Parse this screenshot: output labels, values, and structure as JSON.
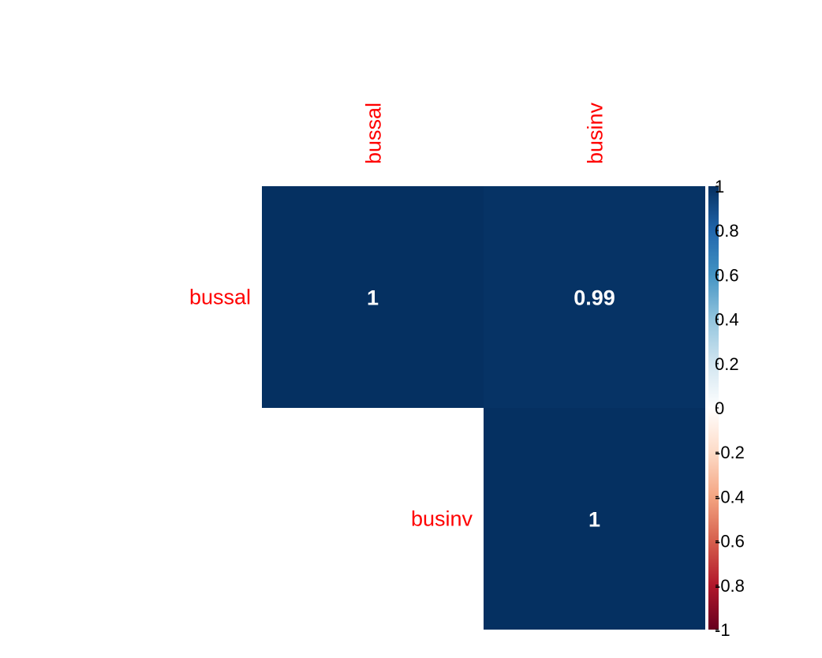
{
  "chart_data": {
    "type": "heatmap",
    "variant": "correlation-matrix-upper",
    "variables": [
      "bussal",
      "businv"
    ],
    "matrix": [
      [
        1,
        0.99
      ],
      [
        null,
        1
      ]
    ],
    "cell_labels": [
      [
        "1",
        "0.99"
      ],
      [
        "",
        "1"
      ]
    ],
    "cells": [
      {
        "row": 0,
        "col": 0,
        "value": 1,
        "label": "1"
      },
      {
        "row": 0,
        "col": 1,
        "value": 0.99,
        "label": "0.99"
      },
      {
        "row": 1,
        "col": 1,
        "value": 1,
        "label": "1"
      }
    ],
    "label_color": "#ff0000",
    "cell_text_color": "#ffffff",
    "colorbar": {
      "range": [
        -1,
        1
      ],
      "ticks": [
        1,
        0.8,
        0.6,
        0.4,
        0.2,
        0,
        -0.2,
        -0.4,
        -0.6,
        -0.8,
        -1
      ],
      "tick_labels": [
        "1",
        "0.8",
        "0.6",
        "0.4",
        "0.2",
        "0",
        "-0.2",
        "-0.4",
        "-0.6",
        "-0.8",
        "-1"
      ],
      "colors": [
        "#67001f",
        "#b2182b",
        "#d6604d",
        "#f4a582",
        "#fddbc7",
        "#ffffff",
        "#d1e5f0",
        "#92c5de",
        "#4393c3",
        "#2166ac",
        "#053061"
      ],
      "placement": "right"
    },
    "grid": false
  }
}
